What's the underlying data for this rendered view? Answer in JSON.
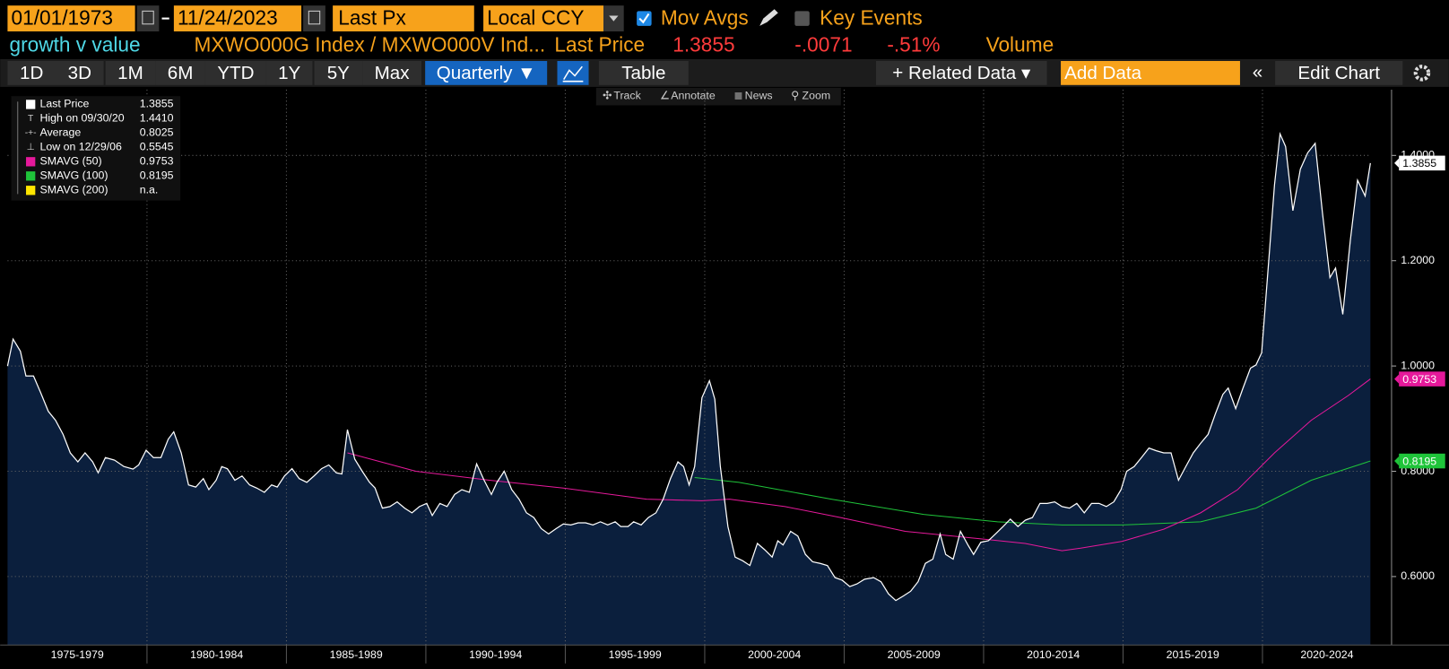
{
  "ui": {
    "start_date": "01/01/1973",
    "end_date": "11/24/2023",
    "field": "Last Px",
    "currency": "Local CCY",
    "mov_avgs": "Mov Avgs",
    "key_events": "Key Events"
  },
  "header": {
    "title": "growth v value",
    "security": "MXWO000G Index / MXWO000V Ind...",
    "field": "Last Price",
    "last": "1.3855",
    "change": "-.0071",
    "pct_change": "-.51%",
    "extra": "Volume"
  },
  "buttons": [
    "1D",
    "3D",
    "1M",
    "6M",
    "YTD",
    "1Y",
    "5Y",
    "Max",
    "Quarterly ▼",
    "Table",
    "+ Related Data ▾",
    "Add Data",
    "Edit Chart"
  ],
  "tools": [
    "Track",
    "Annotate",
    "News",
    "Zoom"
  ],
  "legend": [
    {
      "name": "Last Price",
      "value": "1.3855"
    },
    {
      "name": "High on 09/30/20",
      "value": "1.4410"
    },
    {
      "name": "Average",
      "value": "0.8025"
    },
    {
      "name": "Low on 12/29/06",
      "value": "0.5545"
    },
    {
      "name": "SMAVG (50)",
      "value": "0.9753"
    },
    {
      "name": "SMAVG (100)",
      "value": "0.8195"
    },
    {
      "name": "SMAVG (200)",
      "value": "n.a."
    }
  ],
  "chart_data": {
    "type": "line",
    "area": true,
    "ylim": [
      0.47,
      1.525
    ],
    "yticks": [
      {
        "value": 0.6,
        "label": "0.6000"
      },
      {
        "value": 0.8,
        "label": "0.8000"
      },
      {
        "value": 1.0,
        "label": "1.0000"
      },
      {
        "value": 1.2,
        "label": "1.2000"
      },
      {
        "value": 1.4,
        "label": "1.4000"
      }
    ],
    "xlim": [
      1975,
      2023.9
    ],
    "periods": [
      {
        "label": "1975-1979",
        "start": 1975,
        "end": 1980
      },
      {
        "label": "1980-1984",
        "start": 1980,
        "end": 1985
      },
      {
        "label": "1985-1989",
        "start": 1985,
        "end": 1990
      },
      {
        "label": "1990-1994",
        "start": 1990,
        "end": 1995
      },
      {
        "label": "1995-1999",
        "start": 1995,
        "end": 2000
      },
      {
        "label": "2000-2004",
        "start": 2000,
        "end": 2005
      },
      {
        "label": "2005-2009",
        "start": 2005,
        "end": 2010
      },
      {
        "label": "2010-2014",
        "start": 2010,
        "end": 2015
      },
      {
        "label": "2015-2019",
        "start": 2015,
        "end": 2020
      },
      {
        "label": "2020-2024",
        "start": 2020,
        "end": 2025
      }
    ],
    "grid": true,
    "series": [
      {
        "name": "Last Price",
        "color": "#ffffff",
        "fill": "#0b1f3d",
        "x": [
          1975.0,
          1975.2,
          1975.46,
          1975.66,
          1975.93,
          1976.19,
          1976.46,
          1976.72,
          1976.99,
          1977.25,
          1977.52,
          1977.78,
          1978.05,
          1978.25,
          1978.51,
          1978.84,
          1979.17,
          1979.5,
          1979.7,
          1979.97,
          1980.23,
          1980.5,
          1980.76,
          1980.96,
          1981.23,
          1981.49,
          1981.75,
          1982.02,
          1982.22,
          1982.48,
          1982.68,
          1982.88,
          1983.15,
          1983.41,
          1983.68,
          1983.94,
          1984.21,
          1984.47,
          1984.67,
          1984.93,
          1985.2,
          1985.46,
          1985.73,
          1985.99,
          1986.26,
          1986.52,
          1986.79,
          1986.99,
          1987.19,
          1987.45,
          1987.72,
          1987.98,
          1988.18,
          1988.44,
          1988.71,
          1988.97,
          1989.24,
          1989.5,
          1989.77,
          1990.03,
          1990.23,
          1990.5,
          1990.76,
          1991.03,
          1991.29,
          1991.56,
          1991.82,
          1992.09,
          1992.35,
          1992.55,
          1992.81,
          1993.08,
          1993.34,
          1993.61,
          1993.87,
          1994.14,
          1994.4,
          1994.67,
          1994.93,
          1995.2,
          1995.46,
          1995.73,
          1995.99,
          1996.26,
          1996.52,
          1996.79,
          1996.99,
          1997.25,
          1997.45,
          1997.72,
          1997.98,
          1998.25,
          1998.51,
          1998.77,
          1999.04,
          1999.24,
          1999.44,
          1999.64,
          1999.9,
          2000.17,
          2000.36,
          2000.56,
          2000.83,
          2001.09,
          2001.36,
          2001.62,
          2001.89,
          2002.15,
          2002.42,
          2002.62,
          2002.81,
          2003.08,
          2003.34,
          2003.61,
          2003.87,
          2004.14,
          2004.4,
          2004.67,
          2004.93,
          2005.2,
          2005.46,
          2005.73,
          2006.06,
          2006.32,
          2006.59,
          2006.85,
          2007.12,
          2007.38,
          2007.65,
          2007.91,
          2008.18,
          2008.44,
          2008.64,
          2008.91,
          2009.17,
          2009.44,
          2009.64,
          2009.9,
          2010.17,
          2010.43,
          2010.7,
          2010.96,
          2011.23,
          2011.49,
          2011.75,
          2012.02,
          2012.28,
          2012.55,
          2012.81,
          2013.08,
          2013.34,
          2013.61,
          2013.87,
          2014.14,
          2014.4,
          2014.67,
          2014.93,
          2015.13,
          2015.4,
          2015.66,
          2015.93,
          2016.19,
          2016.46,
          2016.72,
          2016.99,
          2017.25,
          2017.52,
          2017.78,
          2018.05,
          2018.31,
          2018.58,
          2018.77,
          2019.04,
          2019.3,
          2019.57,
          2019.77,
          2019.97,
          2020.23,
          2020.43,
          2020.63,
          2020.83,
          2021.09,
          2021.36,
          2021.62,
          2021.89,
          2022.15,
          2022.42,
          2022.62,
          2022.88,
          2023.15,
          2023.41,
          2023.68,
          2023.87
        ],
        "values": [
          1.0,
          1.051,
          1.028,
          0.981,
          0.981,
          0.949,
          0.914,
          0.897,
          0.87,
          0.835,
          0.818,
          0.835,
          0.818,
          0.797,
          0.826,
          0.821,
          0.809,
          0.804,
          0.812,
          0.84,
          0.826,
          0.826,
          0.861,
          0.875,
          0.835,
          0.774,
          0.77,
          0.786,
          0.765,
          0.783,
          0.809,
          0.805,
          0.783,
          0.791,
          0.774,
          0.768,
          0.76,
          0.774,
          0.77,
          0.791,
          0.805,
          0.786,
          0.779,
          0.791,
          0.805,
          0.812,
          0.797,
          0.795,
          0.879,
          0.823,
          0.8,
          0.779,
          0.768,
          0.73,
          0.733,
          0.742,
          0.73,
          0.721,
          0.733,
          0.739,
          0.716,
          0.739,
          0.733,
          0.756,
          0.765,
          0.76,
          0.814,
          0.783,
          0.756,
          0.779,
          0.8,
          0.765,
          0.747,
          0.721,
          0.712,
          0.691,
          0.681,
          0.691,
          0.7,
          0.698,
          0.702,
          0.702,
          0.698,
          0.704,
          0.698,
          0.704,
          0.695,
          0.695,
          0.704,
          0.698,
          0.712,
          0.721,
          0.747,
          0.786,
          0.818,
          0.809,
          0.774,
          0.809,
          0.94,
          0.972,
          0.937,
          0.809,
          0.695,
          0.637,
          0.63,
          0.621,
          0.663,
          0.651,
          0.637,
          0.668,
          0.66,
          0.686,
          0.677,
          0.642,
          0.628,
          0.625,
          0.621,
          0.598,
          0.593,
          0.581,
          0.586,
          0.595,
          0.598,
          0.59,
          0.567,
          0.5545,
          0.563,
          0.572,
          0.59,
          0.625,
          0.633,
          0.681,
          0.642,
          0.633,
          0.686,
          0.66,
          0.642,
          0.665,
          0.668,
          0.681,
          0.695,
          0.709,
          0.695,
          0.707,
          0.712,
          0.739,
          0.739,
          0.742,
          0.733,
          0.73,
          0.739,
          0.721,
          0.739,
          0.739,
          0.733,
          0.742,
          0.765,
          0.8,
          0.809,
          0.826,
          0.844,
          0.839,
          0.835,
          0.835,
          0.783,
          0.809,
          0.835,
          0.853,
          0.87,
          0.909,
          0.946,
          0.958,
          0.919,
          0.958,
          0.996,
          1.002,
          1.025,
          1.203,
          1.344,
          1.441,
          1.417,
          1.295,
          1.374,
          1.405,
          1.423,
          1.291,
          1.168,
          1.186,
          1.098,
          1.239,
          1.353,
          1.323,
          1.3855
        ]
      },
      {
        "name": "SMAVG (50)",
        "color": "#e6199b",
        "x": [
          1987.19,
          1989.64,
          1992.28,
          1994.93,
          1997.91,
          1999.9,
          2000.89,
          2002.88,
          2004.87,
          2007.19,
          2009.83,
          2011.49,
          2012.81,
          2013.48,
          2014.97,
          2016.46,
          2017.78,
          2019.11,
          2020.43,
          2021.75,
          2023.08,
          2023.87
        ],
        "values": [
          0.835,
          0.8,
          0.783,
          0.768,
          0.747,
          0.744,
          0.747,
          0.733,
          0.712,
          0.686,
          0.672,
          0.663,
          0.649,
          0.654,
          0.667,
          0.69,
          0.721,
          0.765,
          0.835,
          0.897,
          0.944,
          0.9753
        ]
      },
      {
        "name": "SMAVG (100)",
        "color": "#1fc43a",
        "x": [
          1999.64,
          2001.23,
          2004.54,
          2007.85,
          2010.5,
          2012.81,
          2014.97,
          2017.78,
          2019.77,
          2021.75,
          2023.87
        ],
        "values": [
          0.788,
          0.779,
          0.747,
          0.718,
          0.704,
          0.698,
          0.698,
          0.704,
          0.73,
          0.783,
          0.8195
        ]
      }
    ]
  }
}
